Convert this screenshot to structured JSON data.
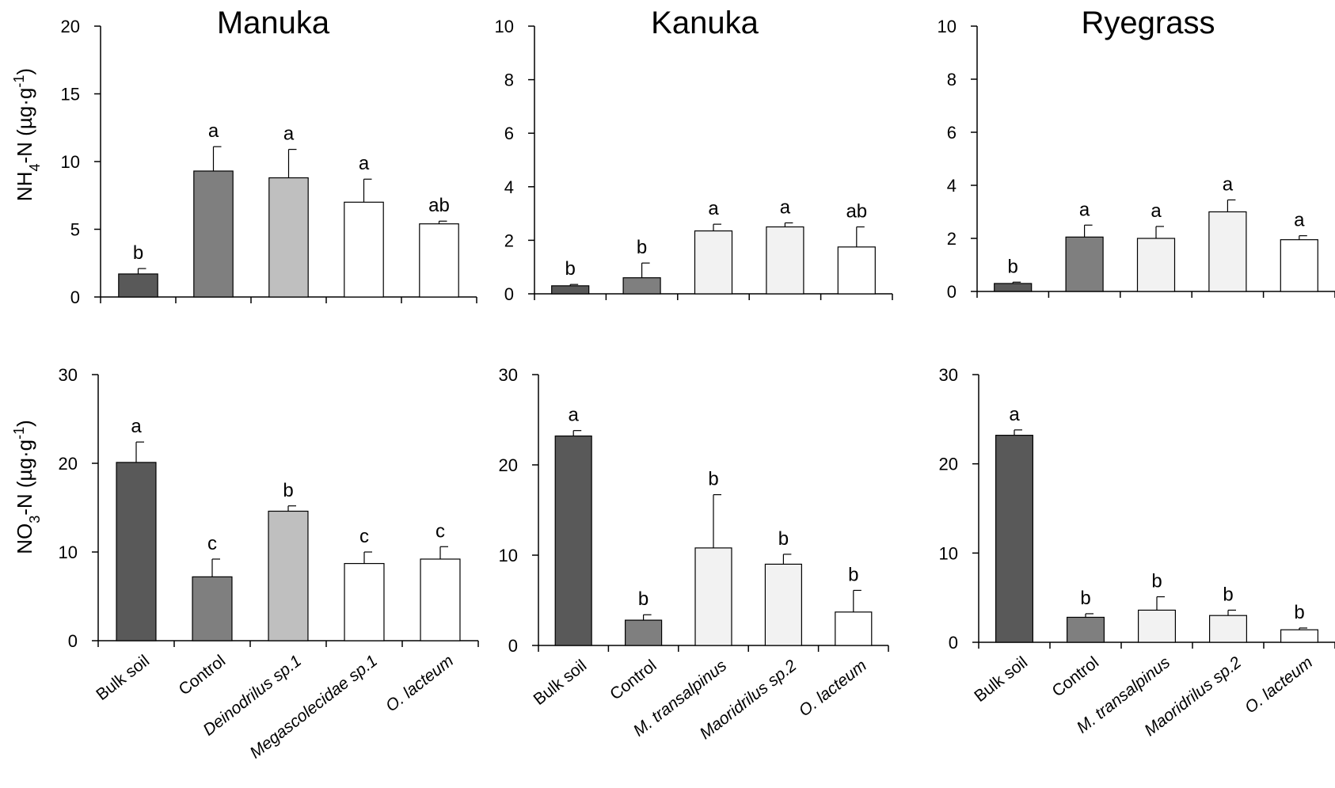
{
  "colors": {
    "bulk": "#595959",
    "control": "#7f7f7f",
    "species_light": "#bfbfbf",
    "species_pale": "#f2f2f2",
    "species_white": "#ffffff",
    "axis": "#000000"
  },
  "chart_data": [
    {
      "type": "bar",
      "panel": "manuka-nh4",
      "title": "Manuka",
      "ylabel_prefix": "NH",
      "ylabel_sub": "4",
      "ylabel_mid": "-N (µg·g",
      "ylabel_sup": "-1",
      "ylabel_suffix": ")",
      "ylim": [
        0,
        20
      ],
      "yticks": [
        0,
        5,
        10,
        15,
        20
      ],
      "categories": [
        "Bulk soil",
        "Control",
        "Deinodrilus sp.1",
        "Megascolecidae sp.1",
        "O. lacteum"
      ],
      "values": [
        1.7,
        9.3,
        8.8,
        7.0,
        5.4
      ],
      "errors": [
        0.4,
        1.8,
        2.1,
        1.7,
        0.2
      ],
      "letters": [
        "b",
        "a",
        "a",
        "a",
        "ab"
      ],
      "bar_colors": [
        "bulk",
        "control",
        "species_light",
        "species_white",
        "species_white"
      ]
    },
    {
      "type": "bar",
      "panel": "kanuka-nh4",
      "title": "Kanuka",
      "ylim": [
        0,
        10
      ],
      "yticks": [
        0,
        2,
        4,
        6,
        8,
        10
      ],
      "categories": [
        "Bulk soil",
        "Control",
        "M. transalpinus",
        "Maoridrilus sp.2",
        "O. lacteum"
      ],
      "values": [
        0.3,
        0.6,
        2.35,
        2.5,
        1.75
      ],
      "errors": [
        0.05,
        0.55,
        0.25,
        0.15,
        0.75
      ],
      "letters": [
        "b",
        "b",
        "a",
        "a",
        "ab"
      ],
      "bar_colors": [
        "bulk",
        "control",
        "species_pale",
        "species_pale",
        "species_white"
      ]
    },
    {
      "type": "bar",
      "panel": "ryegrass-nh4",
      "title": "Ryegrass",
      "ylim": [
        0,
        10
      ],
      "yticks": [
        0,
        2,
        4,
        6,
        8,
        10
      ],
      "categories": [
        "Bulk soil",
        "Control",
        "M. transalpinus",
        "Maoridrilus sp.2",
        "O. lacteum"
      ],
      "values": [
        0.3,
        2.05,
        2.0,
        3.0,
        1.95
      ],
      "errors": [
        0.05,
        0.45,
        0.45,
        0.45,
        0.15
      ],
      "letters": [
        "b",
        "a",
        "a",
        "a",
        "a"
      ],
      "bar_colors": [
        "bulk",
        "control",
        "species_pale",
        "species_pale",
        "species_white"
      ]
    },
    {
      "type": "bar",
      "panel": "manuka-no3",
      "ylabel_prefix": "NO",
      "ylabel_sub": "3",
      "ylabel_mid": "-N (µg·g",
      "ylabel_sup": "-1",
      "ylabel_suffix": ")",
      "ylim": [
        0,
        30
      ],
      "yticks": [
        0,
        10,
        20,
        30
      ],
      "categories": [
        "Bulk soil",
        "Control",
        "Deinodrilus sp.1",
        "Megascolecidae sp.1",
        "O. lacteum"
      ],
      "values": [
        20.1,
        7.2,
        14.6,
        8.7,
        9.2
      ],
      "errors": [
        2.3,
        2.0,
        0.6,
        1.3,
        1.4
      ],
      "letters": [
        "a",
        "c",
        "b",
        "c",
        "c"
      ],
      "bar_colors": [
        "bulk",
        "control",
        "species_light",
        "species_white",
        "species_white"
      ]
    },
    {
      "type": "bar",
      "panel": "kanuka-no3",
      "ylim": [
        0,
        30
      ],
      "yticks": [
        0,
        10,
        20,
        30
      ],
      "categories": [
        "Bulk soil",
        "Control",
        "M. transalpinus",
        "Maoridrilus sp.2",
        "O. lacteum"
      ],
      "values": [
        23.2,
        2.8,
        10.8,
        9.0,
        3.7
      ],
      "errors": [
        0.6,
        0.6,
        5.9,
        1.1,
        2.4
      ],
      "letters": [
        "a",
        "b",
        "b",
        "b",
        "b"
      ],
      "bar_colors": [
        "bulk",
        "control",
        "species_pale",
        "species_pale",
        "species_white"
      ]
    },
    {
      "type": "bar",
      "panel": "ryegrass-no3",
      "ylim": [
        0,
        30
      ],
      "yticks": [
        0,
        10,
        20,
        30
      ],
      "categories": [
        "Bulk soil",
        "Control",
        "M. transalpinus",
        "Maoridrilus sp.2",
        "O. lacteum"
      ],
      "values": [
        23.2,
        2.8,
        3.6,
        3.0,
        1.4
      ],
      "errors": [
        0.6,
        0.4,
        1.5,
        0.6,
        0.2
      ],
      "letters": [
        "a",
        "b",
        "b",
        "b",
        "b"
      ],
      "bar_colors": [
        "bulk",
        "control",
        "species_pale",
        "species_pale",
        "species_white"
      ]
    }
  ]
}
